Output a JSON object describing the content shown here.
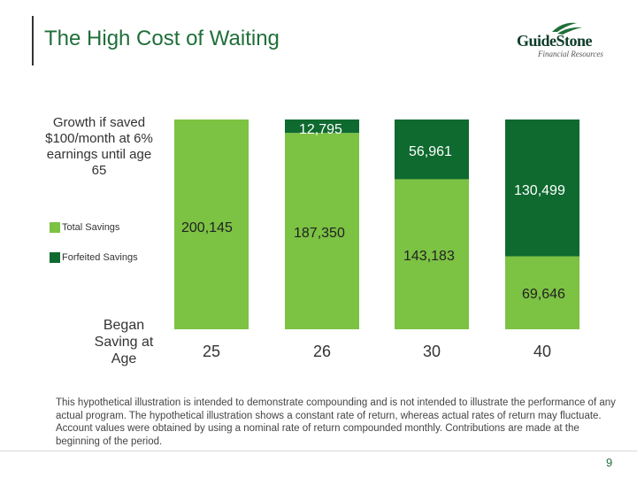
{
  "header": {
    "title": "The High Cost of Waiting",
    "logo_text": "GuideStone",
    "logo_subtext": "Financial Resources"
  },
  "colors": {
    "total_savings": "#7cc243",
    "forfeited_savings": "#0f6a2f",
    "title": "#1f6f3a"
  },
  "side_labels": {
    "growth_label": "Growth if saved $100/month at 6% earnings until age 65",
    "began_label": "Began Saving at Age"
  },
  "legend": [
    {
      "label": "Total Savings",
      "color_key": "total_savings"
    },
    {
      "label": "Forfeited Savings",
      "color_key": "forfeited_savings"
    }
  ],
  "chart_data": {
    "type": "bar",
    "stacked": true,
    "categories": [
      "25",
      "26",
      "30",
      "40"
    ],
    "series": [
      {
        "name": "Total Savings",
        "values": [
          200145,
          187350,
          143183,
          69646
        ]
      },
      {
        "name": "Forfeited Savings",
        "values": [
          0,
          12795,
          56961,
          130499
        ]
      }
    ],
    "value_labels": {
      "total": [
        "200,145",
        "187,350",
        "143,183",
        "69,646"
      ],
      "forfeited": [
        "",
        "12,795",
        "56,961",
        "130,499"
      ]
    },
    "ylim": [
      0,
      200145
    ],
    "grid": false,
    "legend_position": "left"
  },
  "footnote": "This hypothetical illustration is intended to demonstrate compounding and is not intended to illustrate the performance of any actual program. The hypothetical illustration shows a constant rate of return, whereas actual rates of return may fluctuate. Account values were obtained by using a nominal rate of return compounded monthly. Contributions are made at the beginning of the period.",
  "page_number": "9"
}
